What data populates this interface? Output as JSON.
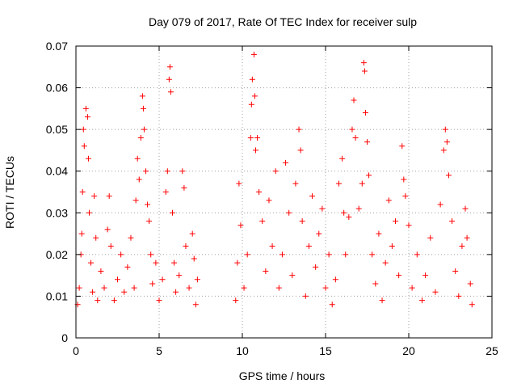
{
  "chart_data": {
    "type": "scatter",
    "title": "Day 079 of 2017, Rate Of TEC Index for receiver sulp",
    "xlabel": "GPS time / hours",
    "ylabel": "ROTI / TECUs",
    "xlim": [
      0,
      25
    ],
    "ylim": [
      0,
      0.07
    ],
    "x_ticks": [
      0,
      5,
      10,
      15,
      20,
      25
    ],
    "x_tick_labels": [
      "0",
      "5",
      "10",
      "15",
      "20",
      "25"
    ],
    "y_ticks": [
      0,
      0.01,
      0.02,
      0.03,
      0.04,
      0.05,
      0.06,
      0.07
    ],
    "y_tick_labels": [
      "0",
      "0.01",
      "0.02",
      "0.03",
      "0.04",
      "0.05",
      "0.06",
      "0.07"
    ],
    "grid": true,
    "marker": "+",
    "color": "#ff0000",
    "series": [
      {
        "points": [
          [
            0.1,
            0.008
          ],
          [
            0.2,
            0.012
          ],
          [
            0.3,
            0.02
          ],
          [
            0.35,
            0.025
          ],
          [
            0.4,
            0.035
          ],
          [
            0.45,
            0.05
          ],
          [
            0.5,
            0.046
          ],
          [
            0.6,
            0.055
          ],
          [
            0.7,
            0.053
          ],
          [
            0.75,
            0.043
          ],
          [
            0.8,
            0.03
          ],
          [
            0.9,
            0.018
          ],
          [
            1.0,
            0.011
          ],
          [
            1.1,
            0.034
          ],
          [
            1.2,
            0.024
          ],
          [
            1.3,
            0.009
          ],
          [
            1.5,
            0.016
          ],
          [
            1.7,
            0.012
          ],
          [
            1.9,
            0.026
          ],
          [
            2.0,
            0.034
          ],
          [
            2.1,
            0.022
          ],
          [
            2.3,
            0.009
          ],
          [
            2.5,
            0.014
          ],
          [
            2.7,
            0.02
          ],
          [
            2.9,
            0.011
          ],
          [
            3.1,
            0.017
          ],
          [
            3.3,
            0.024
          ],
          [
            3.5,
            0.012
          ],
          [
            3.6,
            0.033
          ],
          [
            3.7,
            0.043
          ],
          [
            3.8,
            0.038
          ],
          [
            3.9,
            0.048
          ],
          [
            4.0,
            0.058
          ],
          [
            4.05,
            0.055
          ],
          [
            4.1,
            0.05
          ],
          [
            4.2,
            0.04
          ],
          [
            4.3,
            0.032
          ],
          [
            4.4,
            0.028
          ],
          [
            4.5,
            0.02
          ],
          [
            4.6,
            0.013
          ],
          [
            4.8,
            0.018
          ],
          [
            5.0,
            0.009
          ],
          [
            5.2,
            0.014
          ],
          [
            5.4,
            0.035
          ],
          [
            5.5,
            0.04
          ],
          [
            5.6,
            0.062
          ],
          [
            5.65,
            0.065
          ],
          [
            5.7,
            0.059
          ],
          [
            5.8,
            0.03
          ],
          [
            5.9,
            0.018
          ],
          [
            6.0,
            0.011
          ],
          [
            6.2,
            0.015
          ],
          [
            6.4,
            0.04
          ],
          [
            6.5,
            0.036
          ],
          [
            6.6,
            0.022
          ],
          [
            6.8,
            0.012
          ],
          [
            7.0,
            0.025
          ],
          [
            7.1,
            0.019
          ],
          [
            7.2,
            0.008
          ],
          [
            7.3,
            0.014
          ],
          [
            9.6,
            0.009
          ],
          [
            9.7,
            0.018
          ],
          [
            9.8,
            0.037
          ],
          [
            9.9,
            0.027
          ],
          [
            10.1,
            0.012
          ],
          [
            10.3,
            0.02
          ],
          [
            10.5,
            0.048
          ],
          [
            10.55,
            0.056
          ],
          [
            10.6,
            0.062
          ],
          [
            10.7,
            0.068
          ],
          [
            10.75,
            0.058
          ],
          [
            10.8,
            0.045
          ],
          [
            10.9,
            0.048
          ],
          [
            11.0,
            0.035
          ],
          [
            11.2,
            0.028
          ],
          [
            11.4,
            0.016
          ],
          [
            11.6,
            0.033
          ],
          [
            11.8,
            0.022
          ],
          [
            12.0,
            0.04
          ],
          [
            12.2,
            0.012
          ],
          [
            12.4,
            0.02
          ],
          [
            12.6,
            0.042
          ],
          [
            12.8,
            0.03
          ],
          [
            13.0,
            0.015
          ],
          [
            13.2,
            0.037
          ],
          [
            13.4,
            0.05
          ],
          [
            13.5,
            0.045
          ],
          [
            13.6,
            0.028
          ],
          [
            13.8,
            0.01
          ],
          [
            14.0,
            0.022
          ],
          [
            14.2,
            0.034
          ],
          [
            14.4,
            0.017
          ],
          [
            14.6,
            0.025
          ],
          [
            14.8,
            0.031
          ],
          [
            15.0,
            0.012
          ],
          [
            15.2,
            0.02
          ],
          [
            15.4,
            0.008
          ],
          [
            15.6,
            0.014
          ],
          [
            15.8,
            0.037
          ],
          [
            16.0,
            0.043
          ],
          [
            16.1,
            0.03
          ],
          [
            16.2,
            0.02
          ],
          [
            16.4,
            0.029
          ],
          [
            16.6,
            0.05
          ],
          [
            16.7,
            0.057
          ],
          [
            16.8,
            0.048
          ],
          [
            17.0,
            0.031
          ],
          [
            17.2,
            0.037
          ],
          [
            17.3,
            0.066
          ],
          [
            17.35,
            0.064
          ],
          [
            17.4,
            0.054
          ],
          [
            17.5,
            0.047
          ],
          [
            17.6,
            0.039
          ],
          [
            17.8,
            0.02
          ],
          [
            18.0,
            0.013
          ],
          [
            18.2,
            0.025
          ],
          [
            18.4,
            0.009
          ],
          [
            18.6,
            0.018
          ],
          [
            18.8,
            0.033
          ],
          [
            19.0,
            0.022
          ],
          [
            19.2,
            0.028
          ],
          [
            19.4,
            0.015
          ],
          [
            19.6,
            0.046
          ],
          [
            19.7,
            0.038
          ],
          [
            19.8,
            0.034
          ],
          [
            20.0,
            0.027
          ],
          [
            20.2,
            0.012
          ],
          [
            20.5,
            0.02
          ],
          [
            20.8,
            0.009
          ],
          [
            21.0,
            0.015
          ],
          [
            21.3,
            0.024
          ],
          [
            21.6,
            0.011
          ],
          [
            21.9,
            0.032
          ],
          [
            22.1,
            0.045
          ],
          [
            22.2,
            0.05
          ],
          [
            22.3,
            0.047
          ],
          [
            22.4,
            0.039
          ],
          [
            22.6,
            0.028
          ],
          [
            22.8,
            0.016
          ],
          [
            23.0,
            0.01
          ],
          [
            23.2,
            0.022
          ],
          [
            23.4,
            0.031
          ],
          [
            23.5,
            0.024
          ],
          [
            23.7,
            0.013
          ],
          [
            23.8,
            0.008
          ]
        ]
      }
    ]
  }
}
